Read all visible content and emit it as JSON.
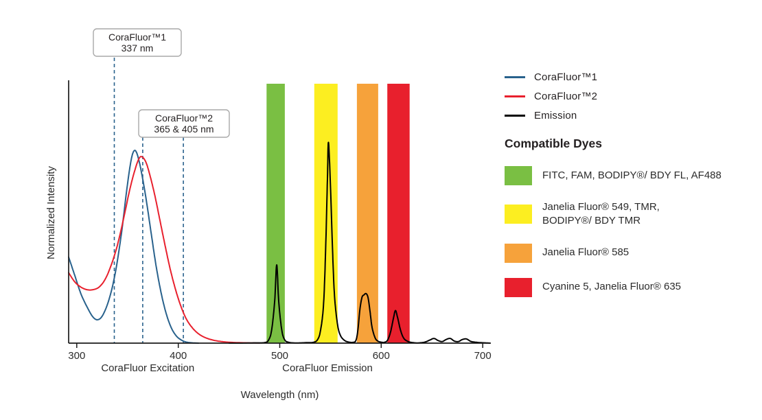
{
  "chart_data": {
    "type": "line",
    "xlabel": "Wavelength (nm)",
    "ylabel": "Normalized Intensity",
    "xlim": [
      292,
      708
    ],
    "ylim": [
      0,
      1.0
    ],
    "x_ticks": [
      300,
      400,
      500,
      600,
      700
    ],
    "grid": false,
    "legend_position": "right",
    "marker_color": "#28618c",
    "x_region_labels": [
      {
        "text": "CoraFluor Excitation",
        "x_nm": 370
      },
      {
        "text": "CoraFluor Emission",
        "x_nm": 547
      }
    ],
    "callouts": [
      {
        "title": "CoraFluor™1",
        "value": "337 nm"
      },
      {
        "title": "CoraFluor™2",
        "value": "365 & 405 nm"
      }
    ],
    "dashed_markers": [
      {
        "nm": 337
      },
      {
        "nm": 365
      },
      {
        "nm": 405
      }
    ],
    "bands": [
      {
        "name": "band-fitc-fam-bodipyfl-af488",
        "x1": 487,
        "x2": 505,
        "color": "#7abf43"
      },
      {
        "name": "band-jf549-tmr-bodipytmr",
        "x1": 534,
        "x2": 557,
        "color": "#fcee21"
      },
      {
        "name": "band-jf585",
        "x1": 576,
        "x2": 597,
        "color": "#f6a23b"
      },
      {
        "name": "band-cy5-jf635",
        "x1": 606,
        "x2": 628,
        "color": "#e8202d"
      }
    ],
    "series": [
      {
        "name": "CoraFluor™1",
        "color": "#28618c",
        "points": [
          [
            292,
            0.33
          ],
          [
            298,
            0.26
          ],
          [
            304,
            0.19
          ],
          [
            310,
            0.14
          ],
          [
            316,
            0.1
          ],
          [
            321,
            0.09
          ],
          [
            326,
            0.11
          ],
          [
            332,
            0.17
          ],
          [
            338,
            0.27
          ],
          [
            344,
            0.42
          ],
          [
            349,
            0.58
          ],
          [
            353,
            0.69
          ],
          [
            356,
            0.735
          ],
          [
            359,
            0.73
          ],
          [
            363,
            0.67
          ],
          [
            368,
            0.56
          ],
          [
            373,
            0.43
          ],
          [
            378,
            0.3
          ],
          [
            383,
            0.195
          ],
          [
            388,
            0.115
          ],
          [
            393,
            0.06
          ],
          [
            398,
            0.028
          ],
          [
            403,
            0.012
          ],
          [
            408,
            0.004
          ],
          [
            414,
            0.001
          ],
          [
            420,
            0
          ]
        ]
      },
      {
        "name": "CoraFluor™2",
        "color": "#e8202d",
        "points": [
          [
            292,
            0.27
          ],
          [
            298,
            0.235
          ],
          [
            304,
            0.215
          ],
          [
            310,
            0.205
          ],
          [
            316,
            0.205
          ],
          [
            322,
            0.215
          ],
          [
            328,
            0.245
          ],
          [
            334,
            0.3
          ],
          [
            340,
            0.375
          ],
          [
            346,
            0.475
          ],
          [
            352,
            0.585
          ],
          [
            357,
            0.66
          ],
          [
            361,
            0.705
          ],
          [
            364,
            0.715
          ],
          [
            368,
            0.695
          ],
          [
            372,
            0.645
          ],
          [
            377,
            0.565
          ],
          [
            382,
            0.47
          ],
          [
            387,
            0.375
          ],
          [
            392,
            0.285
          ],
          [
            397,
            0.21
          ],
          [
            402,
            0.148
          ],
          [
            407,
            0.1
          ],
          [
            412,
            0.068
          ],
          [
            418,
            0.042
          ],
          [
            424,
            0.026
          ],
          [
            431,
            0.015
          ],
          [
            439,
            0.008
          ],
          [
            448,
            0.004
          ],
          [
            458,
            0.002
          ],
          [
            470,
            0.001
          ],
          [
            480,
            0
          ]
        ]
      },
      {
        "name": "Emission",
        "color": "#000000",
        "points": [
          [
            450,
            0
          ],
          [
            462,
            0
          ],
          [
            474,
            0.001
          ],
          [
            485,
            0.002
          ],
          [
            489,
            0.012
          ],
          [
            492,
            0.05
          ],
          [
            495,
            0.16
          ],
          [
            497,
            0.3
          ],
          [
            499,
            0.16
          ],
          [
            502,
            0.05
          ],
          [
            505,
            0.012
          ],
          [
            509,
            0.003
          ],
          [
            514,
            0.001
          ],
          [
            520,
            0.001
          ],
          [
            527,
            0.002
          ],
          [
            533,
            0.003
          ],
          [
            537,
            0.012
          ],
          [
            540,
            0.045
          ],
          [
            543,
            0.14
          ],
          [
            545,
            0.33
          ],
          [
            547,
            0.63
          ],
          [
            548,
            0.77
          ],
          [
            550,
            0.6
          ],
          [
            552,
            0.36
          ],
          [
            554,
            0.18
          ],
          [
            557,
            0.07
          ],
          [
            560,
            0.028
          ],
          [
            564,
            0.01
          ],
          [
            568,
            0.004
          ],
          [
            572,
            0.003
          ],
          [
            575,
            0.01
          ],
          [
            577,
            0.05
          ],
          [
            579,
            0.13
          ],
          [
            581,
            0.175
          ],
          [
            583,
            0.185
          ],
          [
            585,
            0.19
          ],
          [
            587,
            0.175
          ],
          [
            589,
            0.12
          ],
          [
            591,
            0.06
          ],
          [
            594,
            0.02
          ],
          [
            597,
            0.007
          ],
          [
            601,
            0.003
          ],
          [
            603,
            0.003
          ],
          [
            606,
            0.01
          ],
          [
            609,
            0.04
          ],
          [
            612,
            0.095
          ],
          [
            614,
            0.125
          ],
          [
            616,
            0.1
          ],
          [
            619,
            0.05
          ],
          [
            622,
            0.02
          ],
          [
            626,
            0.007
          ],
          [
            631,
            0.002
          ],
          [
            637,
            0.001
          ],
          [
            643,
            0.004
          ],
          [
            648,
            0.012
          ],
          [
            652,
            0.018
          ],
          [
            656,
            0.01
          ],
          [
            660,
            0.006
          ],
          [
            664,
            0.014
          ],
          [
            668,
            0.018
          ],
          [
            672,
            0.008
          ],
          [
            676,
            0.006
          ],
          [
            680,
            0.014
          ],
          [
            684,
            0.016
          ],
          [
            688,
            0.007
          ],
          [
            692,
            0.004
          ],
          [
            697,
            0.002
          ],
          [
            703,
            0.001
          ],
          [
            707,
            0
          ]
        ]
      }
    ]
  },
  "legend": {
    "items": [
      {
        "label": "CoraFluor™1",
        "color": "#28618c"
      },
      {
        "label": "CoraFluor™2",
        "color": "#e8202d"
      },
      {
        "label": "Emission",
        "color": "#000000"
      }
    ],
    "dyes_title": "Compatible Dyes",
    "dyes": [
      {
        "label": "FITC, FAM, BODIPY®/ BDY FL, AF488",
        "color": "#7abf43"
      },
      {
        "label": "Janelia Fluor® 549, TMR,\nBODIPY®/ BDY TMR",
        "color": "#fcee21"
      },
      {
        "label": "Janelia Fluor® 585",
        "color": "#f6a23b"
      },
      {
        "label": "Cyanine 5, Janelia Fluor® 635",
        "color": "#e8202d"
      }
    ]
  }
}
